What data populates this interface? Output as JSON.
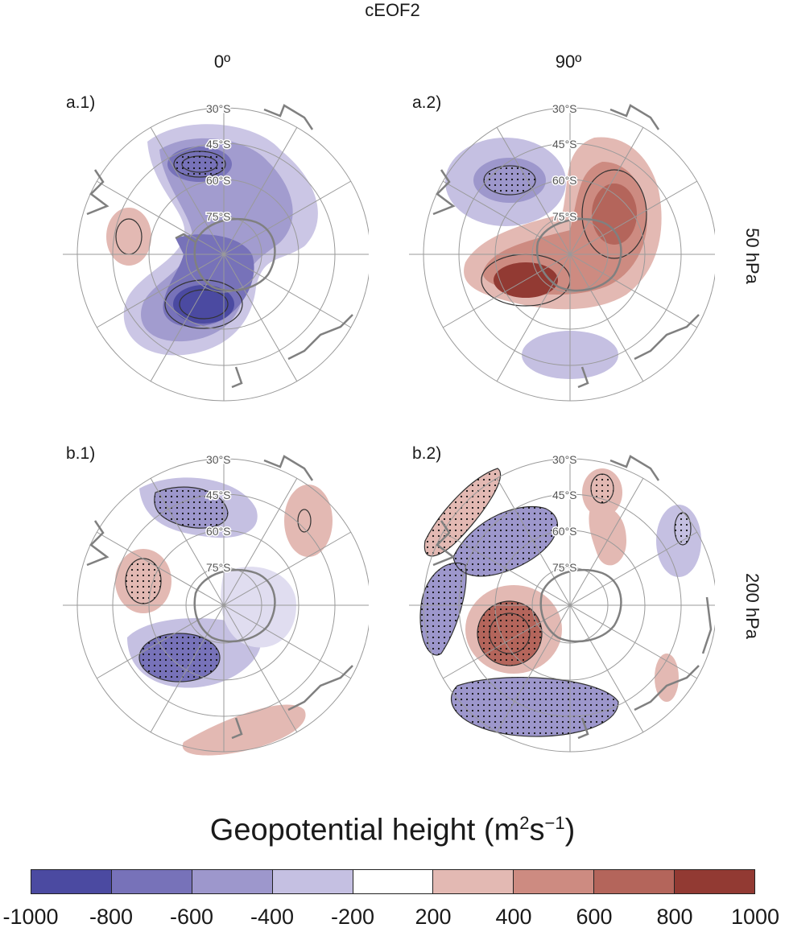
{
  "figure": {
    "title": "cEOF2",
    "columns": [
      "0º",
      "90º"
    ],
    "rows": [
      "50 hPa",
      "200 hPa"
    ],
    "lat_labels": [
      "30°S",
      "45°S",
      "60°S",
      "75°S"
    ],
    "panels": [
      {
        "tag": "a.1)",
        "level": "50 hPa",
        "phase": "0º"
      },
      {
        "tag": "a.2)",
        "level": "50 hPa",
        "phase": "90º"
      },
      {
        "tag": "b.1)",
        "level": "200 hPa",
        "phase": "0º"
      },
      {
        "tag": "b.2)",
        "level": "200 hPa",
        "phase": "90º"
      }
    ]
  },
  "colorbar": {
    "title_main": "Geopotential height (m",
    "title_sup1": "2",
    "title_mid": "s",
    "title_sup2": "−1",
    "title_end": ")",
    "ticks": [
      "-1000",
      "-800",
      "-600",
      "-400",
      "-200",
      "200",
      "400",
      "600",
      "800",
      "1000"
    ],
    "colors": [
      "#4b4aa1",
      "#7772b9",
      "#9d97cc",
      "#c5c0e2",
      "#ffffff",
      "#e3b9b3",
      "#cd8b81",
      "#b4655b",
      "#923a33"
    ]
  },
  "colors": {
    "neg": "#6a64b4",
    "pos": "#b35a4e",
    "coast": "#808080",
    "grid": "#9a9a9a"
  }
}
